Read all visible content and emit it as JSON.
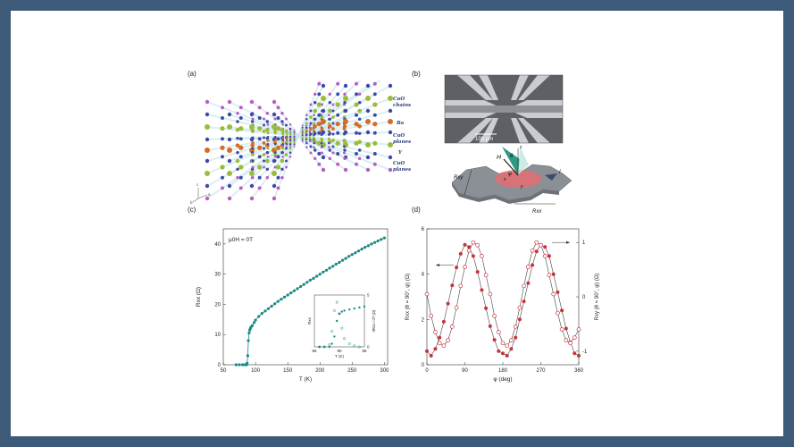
{
  "figure": {
    "panels": {
      "a": {
        "label": "(a)",
        "annotations": [
          "CuO chains",
          "Ba",
          "CuO2 planes",
          "Y",
          "CuO2 planes"
        ],
        "annotation_lines": [
          [
            "CuO",
            "chains"
          ],
          [
            "Ba"
          ],
          [
            "CuO",
            "planes"
          ],
          [
            "Y"
          ],
          [
            "CuO",
            "planes"
          ]
        ],
        "axis_letters": [
          "c",
          "a",
          "b"
        ]
      },
      "b": {
        "label": "(b)",
        "scalebar": "100 μm",
        "symbols": [
          "H",
          "θ",
          "z",
          "φ",
          "x",
          "y",
          "I",
          "Rxy",
          "Rxx"
        ]
      },
      "c": {
        "label": "(c)"
      },
      "d": {
        "label": "(d)"
      }
    }
  },
  "chart_data": [
    {
      "panel": "c",
      "type": "scatter",
      "annotation": "μ0H = 0T",
      "xlabel": "T (K)",
      "ylabel": "Rxx (Ω)",
      "xlim": [
        50,
        305
      ],
      "ylim": [
        0,
        45
      ],
      "xticks": [
        50,
        100,
        150,
        200,
        250,
        300
      ],
      "yticks": [
        0,
        10,
        20,
        30,
        40
      ],
      "series": [
        {
          "x": [
            70,
            75,
            80,
            84,
            86,
            87,
            88,
            89,
            90,
            91,
            92,
            93,
            95,
            98,
            100,
            105,
            110,
            115,
            120,
            125,
            130,
            135,
            140,
            145,
            150,
            155,
            160,
            165,
            170,
            175,
            180,
            185,
            190,
            195,
            200,
            205,
            210,
            215,
            220,
            225,
            230,
            235,
            240,
            245,
            250,
            255,
            260,
            265,
            270,
            275,
            280,
            285,
            290,
            295,
            300
          ],
          "y": [
            0,
            0,
            0,
            0,
            0,
            0.5,
            3,
            8,
            10.5,
            11.5,
            12,
            12.5,
            13,
            14,
            14.8,
            16,
            17,
            17.8,
            18.6,
            19.4,
            20.2,
            21,
            21.7,
            22.4,
            23.1,
            23.8,
            24.5,
            25.2,
            25.9,
            26.6,
            27.3,
            28,
            28.6,
            29.3,
            30,
            30.7,
            31.3,
            32,
            32.6,
            33.3,
            33.9,
            34.6,
            35.2,
            35.9,
            36.5,
            37.1,
            37.7,
            38.3,
            38.9,
            39.4,
            40,
            40.5,
            41,
            41.5,
            42
          ]
        }
      ]
    },
    {
      "panel": "c-inset",
      "type": "scatter",
      "xlabel": "T (K)",
      "ylabel": "Rxx",
      "ylabel_right": "dRxx / dT (Ω)",
      "xlim": [
        85,
        95
      ],
      "yticks_right": [
        0,
        5
      ],
      "xticks": [
        85,
        90,
        95
      ],
      "series": [
        {
          "name": "Rxx",
          "x": [
            86,
            87,
            88,
            88.5,
            89,
            89.5,
            90,
            90.5,
            91,
            92,
            93,
            94,
            95
          ],
          "y": [
            0,
            0,
            0,
            0.3,
            1,
            2.5,
            3.2,
            3.4,
            3.5,
            3.6,
            3.7,
            3.8,
            3.9
          ]
        },
        {
          "name": "dRxx/dT",
          "x": [
            86,
            87,
            88,
            88.5,
            89,
            89.5,
            90,
            90.5,
            91,
            92,
            93,
            94
          ],
          "y": [
            0,
            0,
            0.2,
            1.5,
            3.5,
            4.3,
            3.2,
            1.8,
            0.8,
            0.3,
            0.1,
            0
          ]
        }
      ]
    },
    {
      "panel": "d",
      "type": "scatter",
      "xlabel": "φ (deg)",
      "ylabel": "Rxx (θ = 90°, φ) (Ω)",
      "ylabel_right": "Rxy (θ = 90°, φ) (Ω)",
      "xlim": [
        0,
        360
      ],
      "ylim": [
        0,
        6
      ],
      "ylim_right": [
        -1.25,
        1.25
      ],
      "xticks": [
        0,
        90,
        180,
        270,
        360
      ],
      "yticks": [
        0,
        2,
        4,
        6
      ],
      "yticks_right": [
        -1,
        0,
        1
      ],
      "series": [
        {
          "name": "Rxx",
          "axis": "left",
          "marker": "filled",
          "x": [
            0,
            10,
            20,
            30,
            40,
            50,
            60,
            70,
            80,
            90,
            100,
            110,
            120,
            130,
            140,
            150,
            160,
            170,
            180,
            190,
            200,
            210,
            220,
            230,
            240,
            250,
            260,
            270,
            280,
            290,
            300,
            310,
            320,
            330,
            340,
            350,
            360
          ],
          "y": [
            0.6,
            0.4,
            0.7,
            1.2,
            1.9,
            2.7,
            3.5,
            4.3,
            4.9,
            5.3,
            5.2,
            4.8,
            4.1,
            3.3,
            2.5,
            1.7,
            1.1,
            0.6,
            0.5,
            0.4,
            0.7,
            1.2,
            2.0,
            2.8,
            3.6,
            4.4,
            5.0,
            5.3,
            5.2,
            4.8,
            4.0,
            3.2,
            2.4,
            1.6,
            1.0,
            0.5,
            0.4
          ]
        },
        {
          "name": "Rxy",
          "axis": "right",
          "marker": "open",
          "x": [
            0,
            10,
            20,
            30,
            40,
            50,
            60,
            70,
            80,
            90,
            100,
            110,
            120,
            130,
            140,
            150,
            160,
            170,
            180,
            190,
            200,
            210,
            220,
            230,
            240,
            250,
            260,
            270,
            280,
            290,
            300,
            310,
            320,
            330,
            340,
            350,
            360
          ],
          "y": [
            0.05,
            -0.35,
            -0.65,
            -0.85,
            -0.9,
            -0.8,
            -0.55,
            -0.2,
            0.2,
            0.55,
            0.85,
            1.0,
            0.95,
            0.75,
            0.4,
            0.05,
            -0.35,
            -0.65,
            -0.85,
            -0.9,
            -0.8,
            -0.55,
            -0.2,
            0.2,
            0.55,
            0.85,
            1.0,
            0.95,
            0.75,
            0.4,
            0.05,
            -0.3,
            -0.6,
            -0.8,
            -0.85,
            -0.75,
            -0.6
          ]
        }
      ]
    }
  ]
}
